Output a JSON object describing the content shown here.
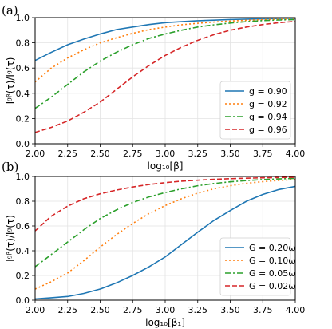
{
  "chart_data": [
    {
      "type": "line",
      "panel_label": "(a)",
      "xlabel": "log₁₀[β]",
      "ylabel": "Iᵍᵝ(τ)/Iᵍ(τ)",
      "xlim": [
        2.0,
        4.0
      ],
      "ylim": [
        0.0,
        1.0
      ],
      "xticks": [
        "2.00",
        "2.25",
        "2.50",
        "2.75",
        "3.00",
        "3.25",
        "3.50",
        "3.75",
        "4.00"
      ],
      "yticks": [
        "0.0",
        "0.2",
        "0.4",
        "0.6",
        "0.8",
        "1.0"
      ],
      "grid": true,
      "legend_position": "lower-right",
      "x": [
        2.0,
        2.125,
        2.25,
        2.375,
        2.5,
        2.625,
        2.75,
        2.875,
        3.0,
        3.125,
        3.25,
        3.375,
        3.5,
        3.625,
        3.75,
        3.875,
        4.0
      ],
      "series": [
        {
          "name": "g = 0.90",
          "color": "#1f77b4",
          "dash": "solid",
          "values": [
            0.66,
            0.725,
            0.785,
            0.83,
            0.87,
            0.905,
            0.925,
            0.945,
            0.96,
            0.968,
            0.975,
            0.98,
            0.985,
            0.988,
            0.99,
            0.993,
            0.995
          ]
        },
        {
          "name": "g = 0.92",
          "color": "#ff7f0e",
          "dash": "dotted",
          "values": [
            0.49,
            0.6,
            0.68,
            0.745,
            0.8,
            0.84,
            0.875,
            0.905,
            0.925,
            0.943,
            0.955,
            0.965,
            0.973,
            0.979,
            0.984,
            0.987,
            0.99
          ]
        },
        {
          "name": "g = 0.94",
          "color": "#2ca02c",
          "dash": "dashdot",
          "values": [
            0.28,
            0.37,
            0.47,
            0.57,
            0.655,
            0.725,
            0.785,
            0.835,
            0.87,
            0.9,
            0.925,
            0.943,
            0.957,
            0.968,
            0.976,
            0.981,
            0.985
          ]
        },
        {
          "name": "g = 0.96",
          "color": "#d62728",
          "dash": "dashed",
          "values": [
            0.09,
            0.13,
            0.18,
            0.25,
            0.33,
            0.43,
            0.53,
            0.62,
            0.7,
            0.765,
            0.82,
            0.865,
            0.9,
            0.925,
            0.945,
            0.96,
            0.97
          ]
        }
      ]
    },
    {
      "type": "line",
      "panel_label": "(b)",
      "xlabel": "log₁₀[β₁]",
      "ylabel": "Iᵍᵝ(τ)/Iᵍ(τ)",
      "xlim": [
        2.0,
        4.0
      ],
      "ylim": [
        0.0,
        1.0
      ],
      "xticks": [
        "2.00",
        "2.25",
        "2.50",
        "2.75",
        "3.00",
        "3.25",
        "3.50",
        "3.75",
        "4.00"
      ],
      "yticks": [
        "0.0",
        "0.2",
        "0.4",
        "0.6",
        "0.8",
        "1.0"
      ],
      "grid": true,
      "legend_position": "lower-right",
      "x": [
        2.0,
        2.125,
        2.25,
        2.375,
        2.5,
        2.625,
        2.75,
        2.875,
        3.0,
        3.125,
        3.25,
        3.375,
        3.5,
        3.625,
        3.75,
        3.875,
        4.0
      ],
      "series": [
        {
          "name": "G = 0.20ω",
          "color": "#1f77b4",
          "dash": "solid",
          "values": [
            0.01,
            0.02,
            0.03,
            0.055,
            0.09,
            0.14,
            0.2,
            0.27,
            0.35,
            0.45,
            0.55,
            0.645,
            0.725,
            0.8,
            0.855,
            0.895,
            0.92
          ]
        },
        {
          "name": "G = 0.10ω",
          "color": "#ff7f0e",
          "dash": "dotted",
          "values": [
            0.09,
            0.15,
            0.22,
            0.32,
            0.43,
            0.53,
            0.62,
            0.7,
            0.765,
            0.82,
            0.865,
            0.9,
            0.925,
            0.945,
            0.958,
            0.968,
            0.975
          ]
        },
        {
          "name": "G = 0.05ω",
          "color": "#2ca02c",
          "dash": "dashdot",
          "values": [
            0.27,
            0.37,
            0.47,
            0.57,
            0.66,
            0.73,
            0.79,
            0.835,
            0.87,
            0.9,
            0.925,
            0.943,
            0.957,
            0.967,
            0.975,
            0.98,
            0.985
          ]
        },
        {
          "name": "G = 0.02ω",
          "color": "#d62728",
          "dash": "dashed",
          "values": [
            0.56,
            0.68,
            0.76,
            0.82,
            0.86,
            0.89,
            0.915,
            0.935,
            0.95,
            0.962,
            0.97,
            0.977,
            0.982,
            0.986,
            0.989,
            0.991,
            0.993
          ]
        }
      ]
    }
  ]
}
